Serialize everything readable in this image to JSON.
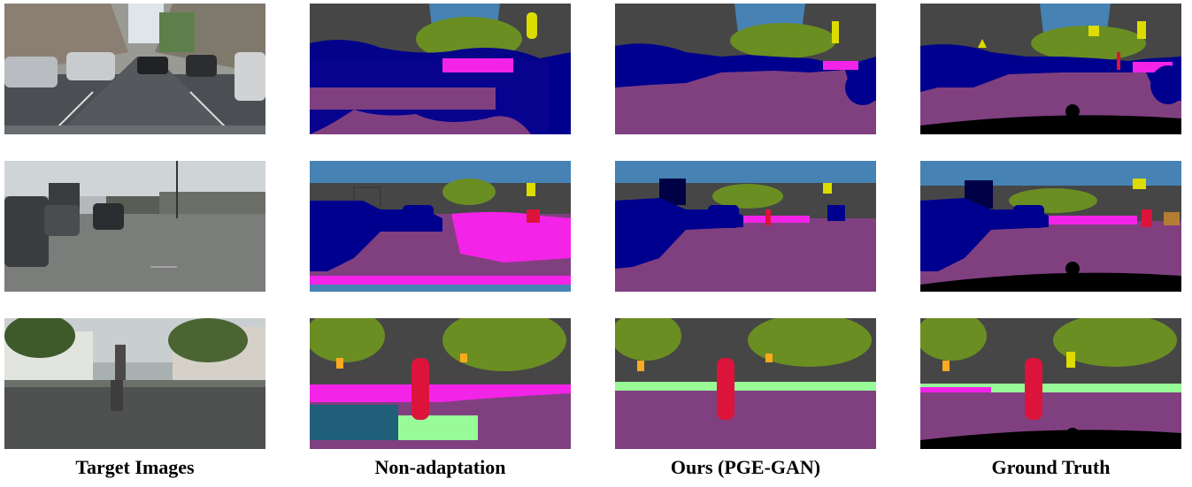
{
  "figure": {
    "columns": [
      {
        "label": "Target Images",
        "kind": "photo"
      },
      {
        "label": "Non-adaptation",
        "kind": "noisy-seg"
      },
      {
        "label": "Ours (PGE-GAN)",
        "kind": "clean-seg"
      },
      {
        "label": "Ground Truth",
        "kind": "gt-seg"
      }
    ],
    "rows": [
      {
        "scene": "urban street with parked cars"
      },
      {
        "scene": "road with oncoming cars and trucks"
      },
      {
        "scene": "crosswalk with pedestrian and trees"
      }
    ],
    "palette": {
      "road": "#804080",
      "sidewalk": "#f423e8",
      "building": "#464646",
      "vegetation": "#6b8e23",
      "terrain": "#98fb98",
      "sky": "#4682b4",
      "person": "#dc143c",
      "car": "#00008e",
      "truck": "#000046",
      "traffic_sign": "#dcdc00",
      "traffic_light": "#faaa1e",
      "pole": "#999999",
      "void": "#000000"
    }
  }
}
